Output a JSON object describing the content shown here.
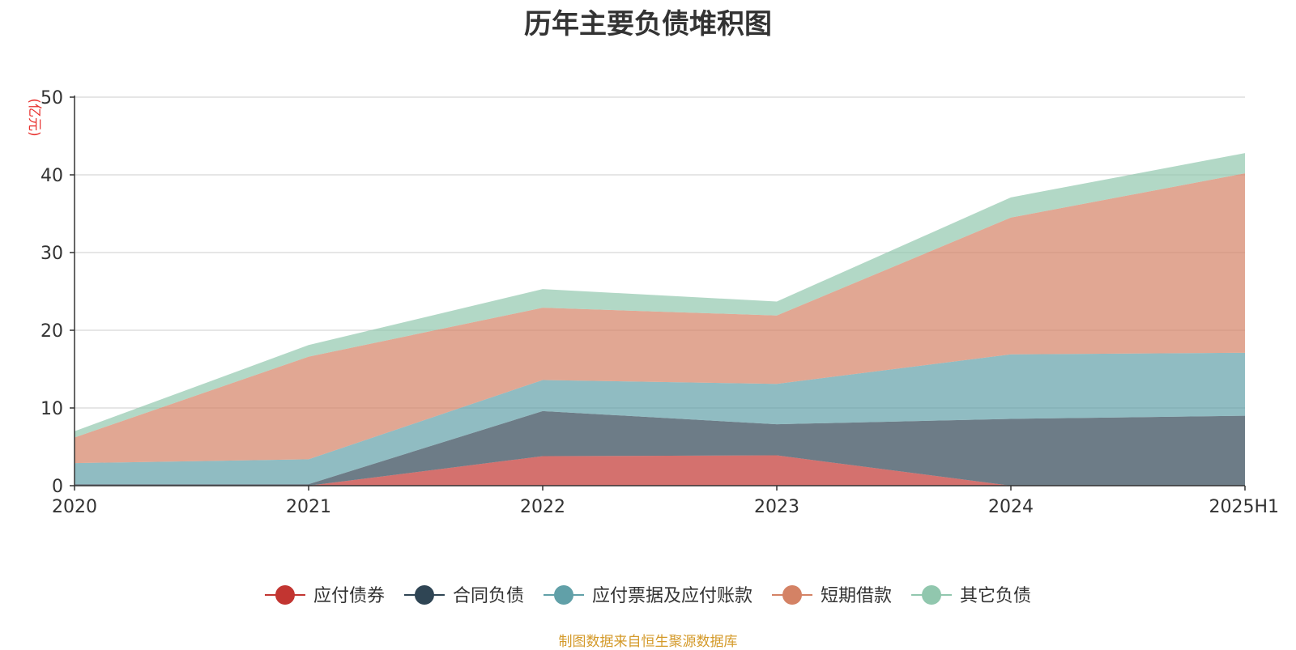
{
  "chart_data": {
    "type": "area",
    "stacked": true,
    "title": "历年主要负债堆积图",
    "unit_label": "(亿元)",
    "categories": [
      "2020",
      "2021",
      "2022",
      "2023",
      "2024",
      "2025H1"
    ],
    "ylim": [
      0,
      50
    ],
    "yticks": [
      0,
      10,
      20,
      30,
      40,
      50
    ],
    "grid": true,
    "legend_position": "bottom",
    "series": [
      {
        "name": "应付债券",
        "color": "#c23531",
        "values": [
          0,
          0,
          3.8,
          3.9,
          0,
          0
        ]
      },
      {
        "name": "合同负债",
        "color": "#2f4554",
        "values": [
          0.2,
          0.2,
          5.8,
          4.0,
          8.6,
          9.0
        ]
      },
      {
        "name": "应付票据及应付账款",
        "color": "#61a0a8",
        "values": [
          2.7,
          3.2,
          4.0,
          5.2,
          8.3,
          8.1
        ]
      },
      {
        "name": "短期借款",
        "color": "#d48265",
        "values": [
          3.3,
          13.2,
          9.3,
          8.8,
          17.6,
          23.1
        ]
      },
      {
        "name": "其它负债",
        "color": "#91c7ae",
        "values": [
          0.8,
          1.5,
          2.4,
          1.8,
          2.6,
          2.6
        ]
      }
    ]
  },
  "footer": {
    "source_note": "制图数据来自恒生聚源数据库"
  }
}
